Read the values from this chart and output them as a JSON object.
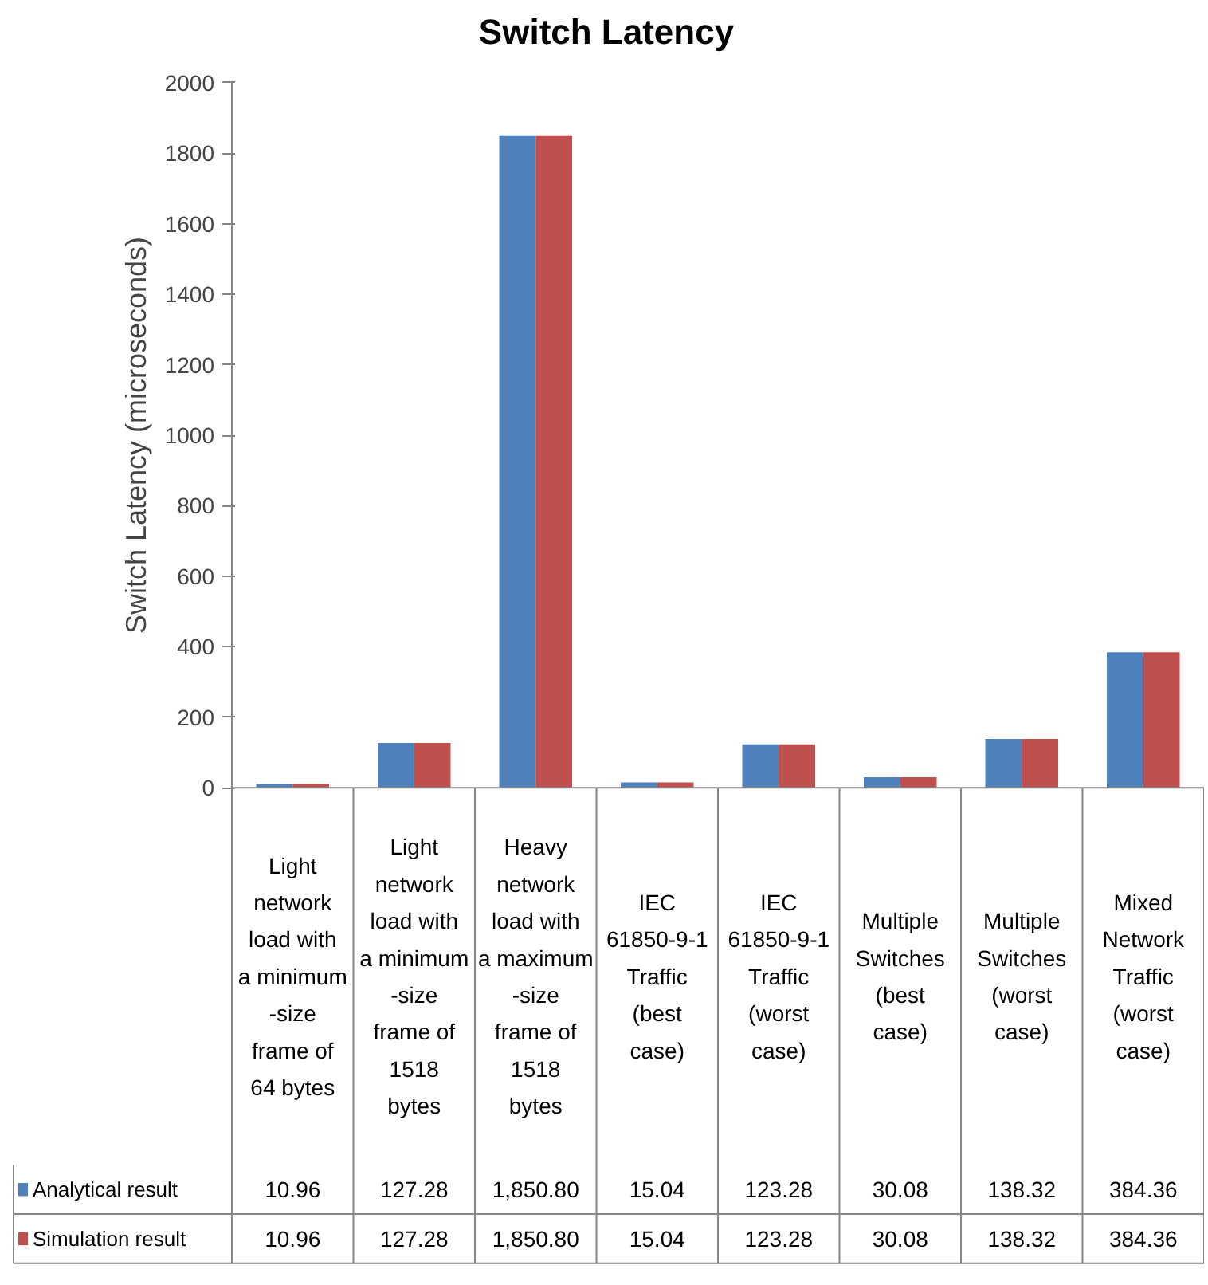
{
  "chart_data": {
    "type": "bar",
    "title": "Switch Latency",
    "ylabel": "Switch Latency (microseconds)",
    "categories": [
      "Light network load with a minimum-size frame of 64 bytes",
      "Light network load with a minimum-size frame of 1518 bytes",
      "Heavy network load with a maximum-size frame of 1518 bytes",
      "IEC 61850-9-1 Traffic (best case)",
      "IEC 61850-9-1 Traffic (worst case)",
      "Multiple Switches (best case)",
      "Multiple Switches (worst case)",
      "Mixed Network Traffic (worst case)"
    ],
    "series": [
      {
        "name": "Analytical result",
        "color": "#4f81bd",
        "values": [
          10.96,
          127.28,
          1850.8,
          15.04,
          123.28,
          30.08,
          138.32,
          384.36
        ],
        "value_labels": [
          "10.96",
          "127.28",
          "1,850.80",
          "15.04",
          "123.28",
          "30.08",
          "138.32",
          "384.36"
        ]
      },
      {
        "name": "Simulation result",
        "color": "#c0504d",
        "values": [
          10.96,
          127.28,
          1850.8,
          15.04,
          123.28,
          30.08,
          138.32,
          384.36
        ],
        "value_labels": [
          "10.96",
          "127.28",
          "1,850.80",
          "15.04",
          "123.28",
          "30.08",
          "138.32",
          "384.36"
        ]
      }
    ],
    "ylim": [
      0,
      2000
    ],
    "yticks": [
      0,
      200,
      400,
      600,
      800,
      1000,
      1200,
      1400,
      1600,
      1800,
      2000
    ],
    "grid": false,
    "legend": "bottom"
  }
}
